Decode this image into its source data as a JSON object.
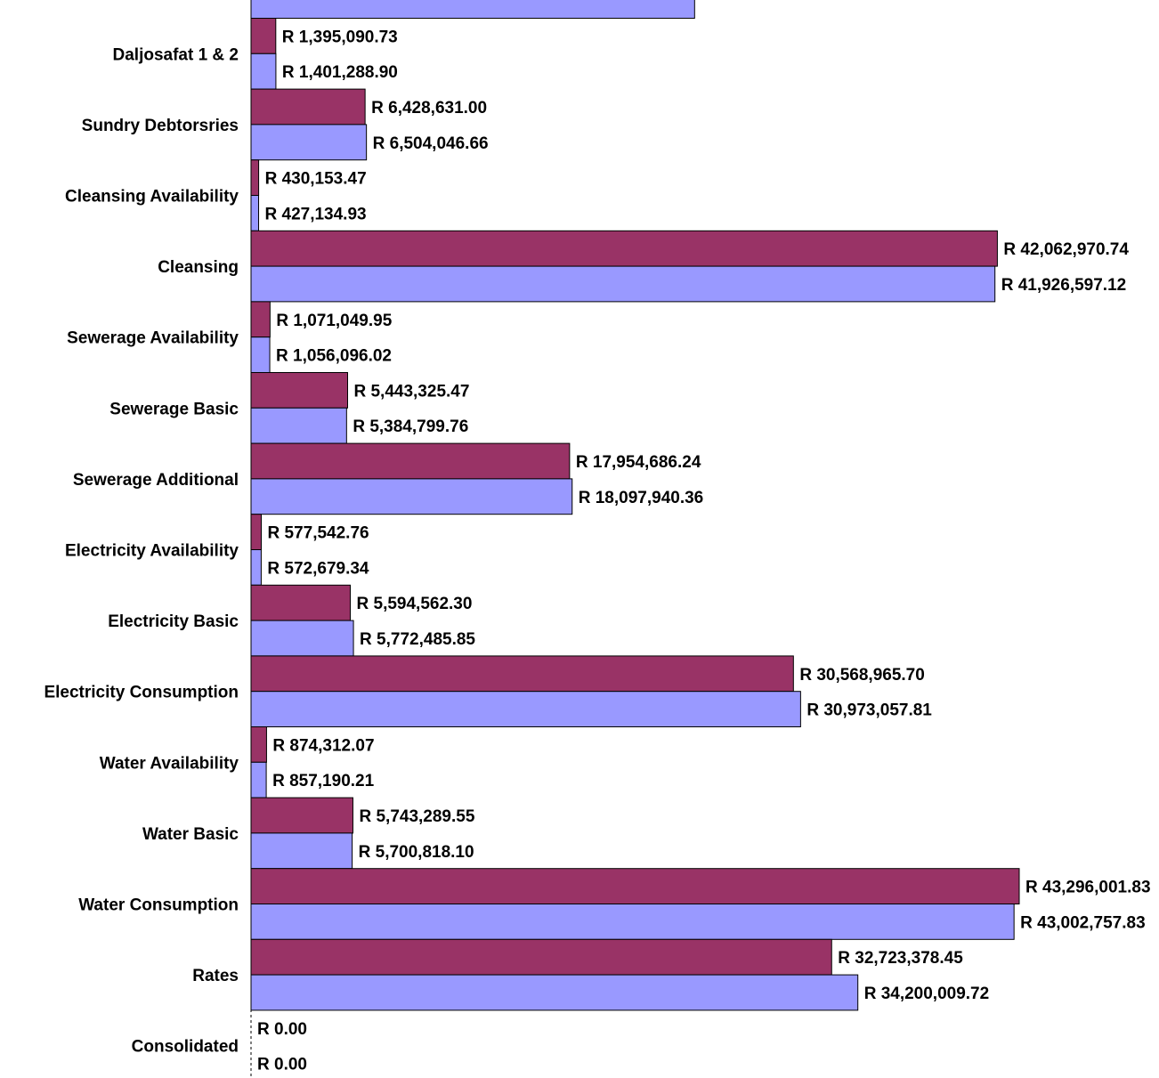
{
  "chart_data": {
    "type": "bar",
    "orientation": "horizontal",
    "value_prefix": "R ",
    "colors": {
      "series_a": "#993366",
      "series_b": "#9999ff",
      "stroke": "#000000"
    },
    "categories": [
      "Daljosafat 1 & 2",
      "Sundry Debtorsries",
      "Cleansing Availability",
      "Cleansing",
      "Sewerage Availability",
      "Sewerage Basic",
      "Sewerage Additional",
      "Electricity Availability",
      "Electricity Basic",
      "Electricity Consumption",
      "Water Availability",
      "Water Basic",
      "Water Consumption",
      "Rates",
      "Consolidated"
    ],
    "series": [
      {
        "values": [
          1395090.73,
          6428631.0,
          430153.47,
          42062970.74,
          1071049.95,
          5443325.47,
          17954686.24,
          577542.76,
          5594562.3,
          30568965.7,
          874312.07,
          5743289.55,
          43296001.83,
          32723378.45,
          0.0
        ],
        "labels": [
          "R 1,395,090.73",
          "R 6,428,631.00",
          "R 430,153.47",
          "R 42,062,970.74",
          "R 1,071,049.95",
          "R 5,443,325.47",
          "R 17,954,686.24",
          "R 577,542.76",
          "R 5,594,562.30",
          "R 30,568,965.70",
          "R 874,312.07",
          "R 5,743,289.55",
          "R 43,296,001.83",
          "R 32,723,378.45",
          "R 0.00"
        ]
      },
      {
        "values": [
          1401288.9,
          6504046.66,
          427134.93,
          41926597.12,
          1056096.02,
          5384799.76,
          18097940.36,
          572679.34,
          5772485.85,
          30973057.81,
          857190.21,
          5700818.1,
          43002757.83,
          34200009.72,
          0.0
        ],
        "labels": [
          "R 1,401,288.90",
          "R 6,504,046.66",
          "R 427,134.93",
          "R 41,926,597.12",
          "R 1,056,096.02",
          "R 5,384,799.76",
          "R 18,097,940.36",
          "R 572,679.34",
          "R 5,772,485.85",
          "R 30,973,057.81",
          "R 857,190.21",
          "R 5,700,818.10",
          "R 43,002,757.83",
          "R 34,200,009.72",
          "R 0.00"
        ]
      }
    ],
    "partial_top_bar": {
      "series_index": 1,
      "value": 25000000
    },
    "xlim": [
      0,
      50000000
    ],
    "grid": false,
    "legend": "none"
  }
}
